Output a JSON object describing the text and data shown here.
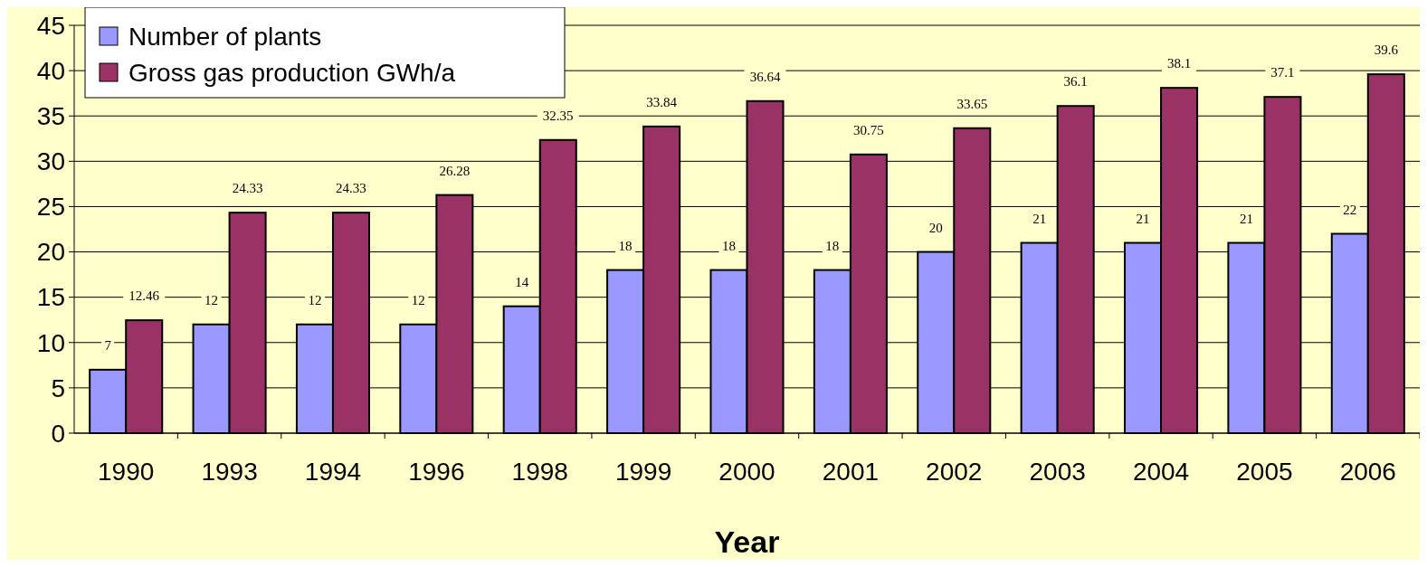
{
  "chart_data": {
    "type": "bar",
    "xlabel": "Year",
    "categories": [
      "1990",
      "1993",
      "1994",
      "1996",
      "1998",
      "1999",
      "2000",
      "2001",
      "2002",
      "2003",
      "2004",
      "2005",
      "2006"
    ],
    "series": [
      {
        "name": "Number of plants",
        "color": "#9999ff",
        "values": [
          7,
          12,
          12,
          12,
          14,
          18,
          18,
          18,
          20,
          21,
          21,
          21,
          22
        ]
      },
      {
        "name": "Gross gas production GWh/a",
        "color": "#993366",
        "values": [
          12.46,
          24.33,
          24.33,
          26.28,
          32.35,
          33.84,
          36.64,
          30.75,
          33.65,
          36.1,
          38.1,
          37.1,
          39.6
        ]
      }
    ],
    "ylim": [
      0,
      45
    ],
    "yticks": [
      0,
      5,
      10,
      15,
      20,
      25,
      30,
      35,
      40,
      45
    ],
    "grid": "y",
    "legend": "top left",
    "data_labels": true
  }
}
